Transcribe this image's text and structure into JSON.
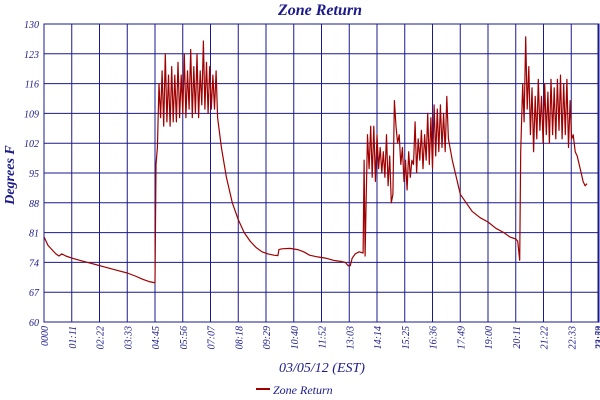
{
  "chart_data": {
    "type": "line",
    "title": "Zone Return",
    "xlabel": "03/05/12 (EST)",
    "ylabel": "Degrees F",
    "ylim": [
      60,
      130
    ],
    "yticks": [
      "60",
      "67",
      "74",
      "81",
      "88",
      "95",
      "102",
      "109",
      "116",
      "123",
      "130"
    ],
    "xticks": [
      "0000",
      "01:11",
      "02:22",
      "03:33",
      "04:45",
      "05:56",
      "07:07",
      "08:18",
      "09:29",
      "10:40",
      "11:52",
      "13:03",
      "14:14",
      "15:25",
      "16:36",
      "17:49",
      "19:00",
      "20:11",
      "21:22",
      "22:33",
      "23:44",
      "23:59"
    ],
    "grid": true,
    "legend_position": "bottom-center",
    "colors": {
      "series": "#a00000",
      "grid": "#1a1a8c",
      "text": "#1a1a8c"
    },
    "series": [
      {
        "name": "Zone Return",
        "x_unit": "hours",
        "points": [
          [
            0.0,
            80
          ],
          [
            0.2,
            78
          ],
          [
            0.4,
            77
          ],
          [
            0.6,
            76
          ],
          [
            0.75,
            75.5
          ],
          [
            0.9,
            76
          ],
          [
            1.1,
            75.5
          ],
          [
            1.4,
            75
          ],
          [
            1.8,
            74.5
          ],
          [
            2.2,
            74
          ],
          [
            2.6,
            73.5
          ],
          [
            3.0,
            73
          ],
          [
            3.4,
            72.5
          ],
          [
            3.8,
            72
          ],
          [
            4.2,
            71.5
          ],
          [
            4.6,
            70.8
          ],
          [
            5.0,
            70
          ],
          [
            5.3,
            69.5
          ],
          [
            5.5,
            69.3
          ],
          [
            5.6,
            69.2
          ],
          [
            5.65,
            97
          ],
          [
            5.72,
            101
          ],
          [
            5.8,
            116
          ],
          [
            5.88,
            108
          ],
          [
            5.96,
            119
          ],
          [
            6.04,
            106
          ],
          [
            6.12,
            123
          ],
          [
            6.2,
            107
          ],
          [
            6.28,
            118
          ],
          [
            6.36,
            106
          ],
          [
            6.44,
            120
          ],
          [
            6.52,
            107
          ],
          [
            6.6,
            118
          ],
          [
            6.68,
            107
          ],
          [
            6.76,
            121
          ],
          [
            6.84,
            108
          ],
          [
            6.92,
            118
          ],
          [
            7.0,
            109
          ],
          [
            7.08,
            123
          ],
          [
            7.16,
            108
          ],
          [
            7.24,
            119
          ],
          [
            7.32,
            110
          ],
          [
            7.4,
            124
          ],
          [
            7.48,
            108
          ],
          [
            7.56,
            120
          ],
          [
            7.64,
            109
          ],
          [
            7.72,
            123
          ],
          [
            7.8,
            108
          ],
          [
            7.88,
            119
          ],
          [
            7.96,
            111
          ],
          [
            8.04,
            126
          ],
          [
            8.12,
            110
          ],
          [
            8.2,
            121
          ],
          [
            8.28,
            109
          ],
          [
            8.36,
            120
          ],
          [
            8.44,
            110
          ],
          [
            8.52,
            118
          ],
          [
            8.6,
            110
          ],
          [
            8.68,
            119
          ],
          [
            8.76,
            108
          ],
          [
            8.95,
            101
          ],
          [
            9.2,
            94
          ],
          [
            9.5,
            88
          ],
          [
            9.8,
            84
          ],
          [
            10.1,
            81
          ],
          [
            10.4,
            79
          ],
          [
            10.7,
            77.5
          ],
          [
            11.0,
            76.5
          ],
          [
            11.3,
            76
          ],
          [
            11.6,
            75.7
          ],
          [
            11.8,
            75.6
          ],
          [
            11.85,
            77
          ],
          [
            12.0,
            77.2
          ],
          [
            12.4,
            77.3
          ],
          [
            12.8,
            77
          ],
          [
            13.1,
            76.5
          ],
          [
            13.4,
            75.7
          ],
          [
            13.8,
            75.3
          ],
          [
            14.2,
            75
          ],
          [
            14.6,
            74.5
          ],
          [
            15.0,
            74.2
          ],
          [
            15.2,
            74
          ],
          [
            15.35,
            73.2
          ],
          [
            15.45,
            73.2
          ],
          [
            15.55,
            75
          ],
          [
            15.7,
            76
          ],
          [
            15.9,
            76.5
          ],
          [
            16.1,
            76.2
          ],
          [
            16.15,
            98
          ],
          [
            16.2,
            75.5
          ],
          [
            16.25,
            88
          ],
          [
            16.32,
            104
          ],
          [
            16.4,
            96
          ],
          [
            16.48,
            106
          ],
          [
            16.56,
            94
          ],
          [
            16.64,
            106
          ],
          [
            16.72,
            93
          ],
          [
            16.8,
            104
          ],
          [
            16.88,
            96
          ],
          [
            16.96,
            101
          ],
          [
            17.04,
            95
          ],
          [
            17.12,
            100
          ],
          [
            17.2,
            94
          ],
          [
            17.28,
            104
          ],
          [
            17.36,
            92
          ],
          [
            17.44,
            99
          ],
          [
            17.52,
            88
          ],
          [
            17.6,
            90
          ],
          [
            17.68,
            112
          ],
          [
            17.76,
            106
          ],
          [
            17.84,
            102
          ],
          [
            17.92,
            104
          ],
          [
            18.0,
            97
          ],
          [
            18.08,
            101
          ],
          [
            18.16,
            93
          ],
          [
            18.24,
            98
          ],
          [
            18.32,
            91
          ],
          [
            18.4,
            100
          ],
          [
            18.48,
            94
          ],
          [
            18.56,
            98
          ],
          [
            18.64,
            97
          ],
          [
            18.72,
            107
          ],
          [
            18.8,
            95
          ],
          [
            18.88,
            103
          ],
          [
            18.96,
            98
          ],
          [
            19.04,
            105
          ],
          [
            19.12,
            96
          ],
          [
            19.2,
            104
          ],
          [
            19.28,
            98
          ],
          [
            19.36,
            109
          ],
          [
            19.44,
            97
          ],
          [
            19.52,
            108
          ],
          [
            19.6,
            96
          ],
          [
            19.68,
            111
          ],
          [
            19.76,
            99
          ],
          [
            19.84,
            110
          ],
          [
            19.92,
            100
          ],
          [
            20.0,
            111
          ],
          [
            20.08,
            101
          ],
          [
            20.16,
            109
          ],
          [
            20.24,
            100
          ],
          [
            20.32,
            113
          ],
          [
            20.4,
            103
          ],
          [
            20.6,
            98
          ],
          [
            20.8,
            94
          ],
          [
            21.0,
            90
          ],
          [
            21.3,
            88
          ],
          [
            21.6,
            86
          ],
          [
            22.0,
            84.5
          ],
          [
            22.4,
            83.5
          ],
          [
            22.8,
            82
          ],
          [
            23.2,
            81
          ],
          [
            23.5,
            80
          ],
          [
            23.8,
            79.5
          ],
          [
            23.9,
            79
          ],
          [
            24.0,
            74.5
          ],
          [
            24.05,
            100
          ],
          [
            24.15,
            116
          ],
          [
            24.22,
            107
          ],
          [
            24.3,
            127
          ],
          [
            24.38,
            110
          ],
          [
            24.46,
            120
          ],
          [
            24.54,
            104
          ],
          [
            24.62,
            115
          ],
          [
            24.7,
            100
          ],
          [
            24.78,
            113
          ],
          [
            24.86,
            103
          ],
          [
            24.94,
            117
          ],
          [
            25.02,
            105
          ],
          [
            25.1,
            113
          ],
          [
            25.18,
            102
          ],
          [
            25.26,
            116
          ],
          [
            25.34,
            104
          ],
          [
            25.42,
            114
          ],
          [
            25.5,
            102
          ],
          [
            25.58,
            117
          ],
          [
            25.66,
            104
          ],
          [
            25.74,
            115
          ],
          [
            25.82,
            103
          ],
          [
            25.9,
            117
          ],
          [
            25.98,
            105
          ],
          [
            26.06,
            118
          ],
          [
            26.14,
            103
          ],
          [
            26.22,
            116
          ],
          [
            26.3,
            104
          ],
          [
            26.38,
            117
          ],
          [
            26.46,
            101
          ],
          [
            26.54,
            112
          ],
          [
            26.62,
            103
          ],
          [
            26.7,
            104
          ],
          [
            26.8,
            100
          ],
          [
            26.9,
            99
          ],
          [
            27.0,
            97
          ],
          [
            27.1,
            95
          ],
          [
            27.2,
            93
          ],
          [
            27.3,
            92
          ],
          [
            27.4,
            92.5
          ]
        ]
      }
    ]
  }
}
